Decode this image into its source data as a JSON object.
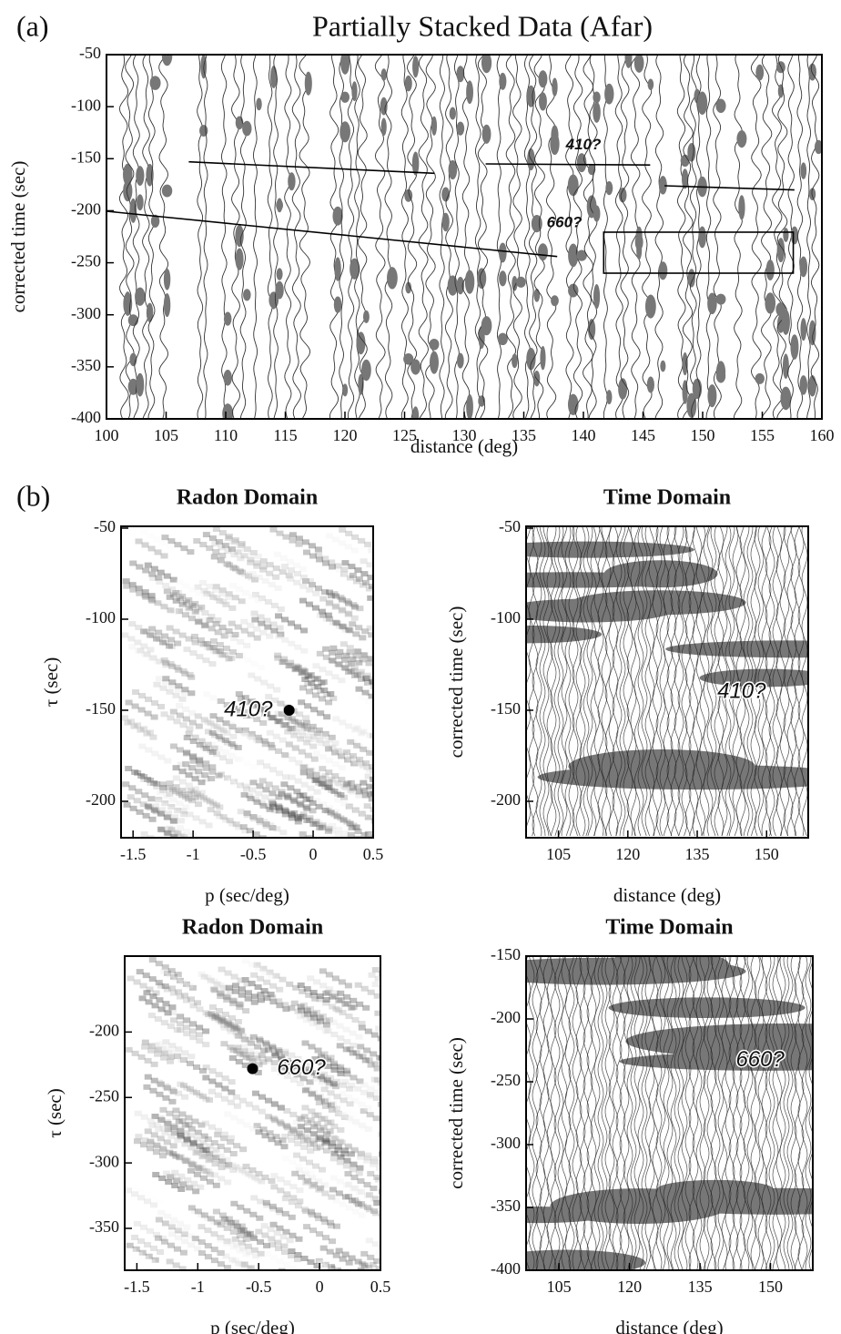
{
  "chart_data": [
    {
      "type": "line",
      "panel_label": "(a)",
      "title": "Partially Stacked Data (Afar)",
      "x_label": "distance (deg)",
      "y_label": "corrected time (sec)",
      "xlim": [
        100,
        160
      ],
      "xticks": [
        100,
        105,
        110,
        115,
        120,
        125,
        130,
        135,
        140,
        145,
        150,
        155,
        160
      ],
      "ylim": [
        -400,
        -50
      ],
      "yticks": [
        -50,
        -100,
        -150,
        -200,
        -250,
        -300,
        -350,
        -400
      ],
      "series": [
        {
          "color": "#000000",
          "x": [
            106.9,
            127.5
          ],
          "values": [
            -153,
            -164
          ]
        },
        {
          "color": "#000000",
          "x": [
            131.8,
            145.6
          ],
          "values": [
            -155,
            -156
          ]
        },
        {
          "color": "#000000",
          "x": [
            146.8,
            157.7
          ],
          "values": [
            -176,
            -180
          ]
        },
        {
          "color": "#000000",
          "x": [
            100,
            137.8
          ],
          "values": [
            -200.5,
            -244
          ]
        }
      ],
      "box": {
        "x": [
          141.7,
          157.6
        ],
        "y": [
          -260,
          -220.6
        ]
      },
      "annotations": [
        {
          "text": "410?",
          "x": 140,
          "y": -137
        },
        {
          "text": "660?",
          "x": 138.4,
          "y": -212
        }
      ]
    },
    {
      "type": "scatter",
      "panel_label": "(b)",
      "title": "Radon Domain",
      "x_label": "p (sec/deg)",
      "y_label": "τ (sec)",
      "xlim": [
        -1.6,
        0.5
      ],
      "xticks": [
        -1.5,
        -1.0,
        -0.5,
        0.0,
        0.5
      ],
      "ylim": [
        -220,
        -49
      ],
      "yticks": [
        -50,
        -100,
        -150,
        -200
      ],
      "series": [
        {
          "color": "#000000",
          "x": [
            -0.2
          ],
          "values": [
            -150
          ]
        }
      ],
      "annotations": [
        {
          "text": "410?",
          "x": -0.54,
          "y": -150
        }
      ]
    },
    {
      "type": "area",
      "title": "Time Domain",
      "x_label": "distance (deg)",
      "y_label": "corrected time (sec)",
      "xlim": [
        98,
        159
      ],
      "xticks": [
        105,
        120,
        135,
        150
      ],
      "ylim": [
        -220,
        -49
      ],
      "yticks": [
        -50,
        -100,
        -150,
        -200
      ],
      "annotations": [
        {
          "text": "410?",
          "x": 144.6,
          "y": -140
        }
      ]
    },
    {
      "type": "scatter",
      "title": "Radon Domain",
      "x_label": "p (sec/deg)",
      "y_label": "τ (sec)",
      "xlim": [
        -1.6,
        0.5
      ],
      "xticks": [
        -1.5,
        -1.0,
        -0.5,
        0.0,
        0.5
      ],
      "ylim": [
        -382,
        -142
      ],
      "yticks": [
        -200,
        -250,
        -300,
        -350
      ],
      "series": [
        {
          "color": "#000000",
          "x": [
            -0.55
          ],
          "values": [
            -228
          ]
        }
      ],
      "annotations": [
        {
          "text": "660?",
          "x": -0.15,
          "y": -228
        }
      ]
    },
    {
      "type": "area",
      "title": "Time Domain",
      "x_label": "distance (deg)",
      "y_label": "corrected time (sec)",
      "xlim": [
        98,
        159
      ],
      "xticks": [
        105,
        120,
        135,
        150
      ],
      "ylim": [
        -400,
        -150
      ],
      "yticks": [
        -150,
        -200,
        -250,
        -300,
        -350,
        -400
      ],
      "annotations": [
        {
          "text": "660?",
          "x": 147.8,
          "y": -233
        }
      ]
    }
  ]
}
